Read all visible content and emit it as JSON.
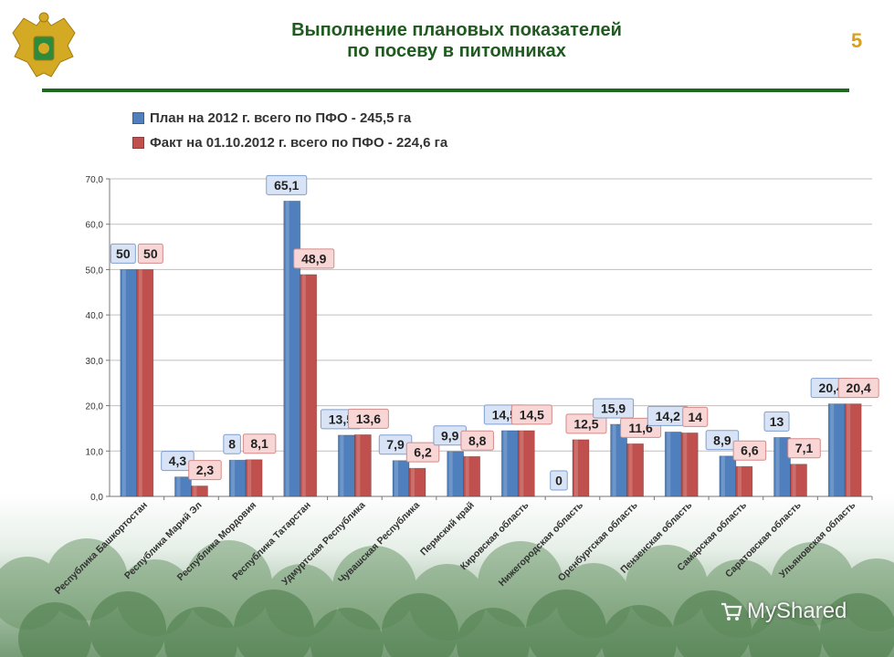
{
  "header": {
    "title_line1": "Выполнение плановых показателей",
    "title_line2": "по посеву в питомниках",
    "page_number": "5"
  },
  "watermark": {
    "text": "MyShared",
    "icon": "cart-icon"
  },
  "emblem": {
    "icon": "double-headed-eagle-emblem"
  },
  "colors": {
    "plan": "#4f7fbd",
    "fact": "#c0504d",
    "accent": "#1d6a1d",
    "title": "#1f5a1f"
  },
  "chart_data": {
    "type": "bar",
    "categories": [
      "Республика Башкортостан",
      "Республика Марий Эл",
      "Республика Мордовия",
      "Республика Татарстан",
      "Удмуртская Республика",
      "Чувашская Республика",
      "Пермский край",
      "Кировская область",
      "Нижегородская область",
      "Оренбургская область",
      "Пензенская область",
      "Самарская область",
      "Саратовская область",
      "Ульяновская область"
    ],
    "series": [
      {
        "name": "План на 2012 г. всего по ПФО - 245,5 га",
        "values": [
          50,
          4.3,
          8,
          65.1,
          13.5,
          7.9,
          9.9,
          14.5,
          0,
          15.9,
          14.2,
          8.9,
          13,
          20.4
        ],
        "labels": [
          "50",
          "4,3",
          "8",
          "65,1",
          "13,5",
          "7,9",
          "9,9",
          "14,5",
          "0",
          "15,9",
          "14,2",
          "8,9",
          "13",
          "20,4"
        ]
      },
      {
        "name": "Факт на 01.10.2012 г. всего по ПФО - 224,6 га",
        "values": [
          50,
          2.3,
          8.1,
          48.9,
          13.6,
          6.2,
          8.8,
          14.5,
          12.5,
          11.6,
          14,
          6.6,
          7.1,
          20.4
        ],
        "labels": [
          "50",
          "2,3",
          "8,1",
          "48,9",
          "13,6",
          "6,2",
          "8,8",
          "14,5",
          "12,5",
          "11,6",
          "14",
          "6,6",
          "7,1",
          "20,4"
        ]
      }
    ],
    "y_ticks": [
      "0,0",
      "10,0",
      "20,0",
      "30,0",
      "40,0",
      "50,0",
      "60,0",
      "70,0"
    ],
    "ylim": [
      0,
      70
    ],
    "grid": true,
    "legend_position": "top-left"
  }
}
